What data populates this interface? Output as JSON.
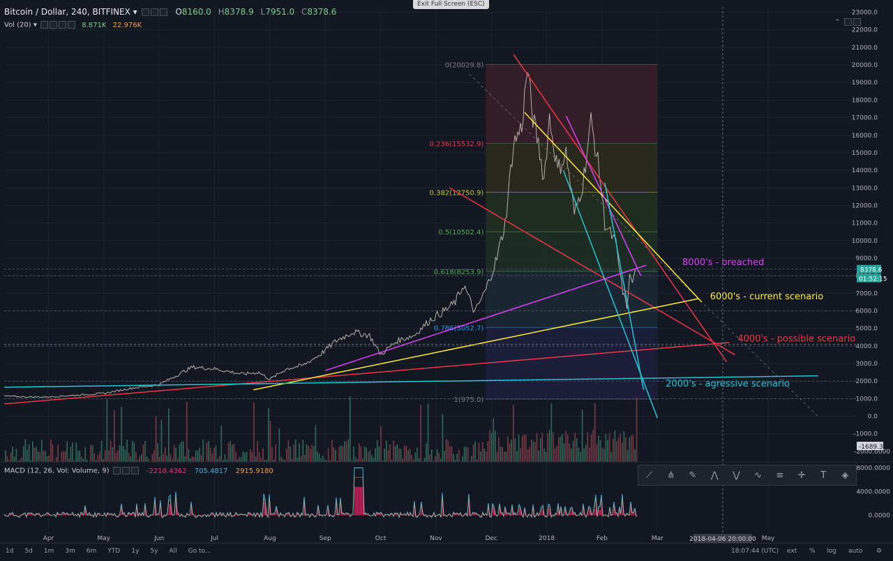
{
  "header": {
    "symbol": "Bitcoin / Dollar, 240, BITFINEX",
    "open_label": "O",
    "open": "8160.0",
    "high_label": "H",
    "high": "8378.9",
    "low_label": "L",
    "low": "7951.0",
    "close_label": "C",
    "close": "8378.6"
  },
  "volume_header": {
    "label": "Vol (20)",
    "v1": "8.871K",
    "v2": "22.976K"
  },
  "macd_header": {
    "label": "MACD (12, 26, Vol: Volume, 9)",
    "v1": "-2210.4362",
    "v2": "705.4817",
    "v3": "2915.9180"
  },
  "exit_fullscreen": "Exit Full Screen (ESC)",
  "price_tag": "8378.6",
  "countdown_tag": "01:52:15",
  "macd_bottom_tag": "-1689.3",
  "crosshair_date": "2018-04-06 20:00:00",
  "clock": "18:07:44 (UTC)",
  "timeframes": [
    "1d",
    "5d",
    "1m",
    "3m",
    "6m",
    "YTD",
    "1y",
    "5y",
    "All",
    "Go to..."
  ],
  "bottom_right": [
    "ext",
    "%",
    "log",
    "auto"
  ],
  "drawing_tools": [
    "trend-line-icon",
    "pitchfork-icon",
    "brush-icon",
    "xabcd-icon",
    "abcd-icon",
    "elliott-icon",
    "fib-icon",
    "crosshair-icon",
    "text-icon",
    "shapes-icon"
  ],
  "colors": {
    "bg": "#131722",
    "red": "#f23645",
    "yellow": "#ffeb3b",
    "magenta": "#e040fb",
    "cyan": "#26c6da"
  },
  "chart_data": {
    "type": "line",
    "title": "Bitcoin / Dollar, 240, BITFINEX",
    "price_axis": {
      "ticks": [
        -1000,
        0,
        1000,
        2000,
        3000,
        4000,
        5000,
        6000,
        7000,
        8000,
        9000,
        10000,
        11000,
        12000,
        13000,
        14000,
        15000,
        16000,
        17000,
        18000,
        19000,
        20000,
        21000,
        22000,
        23000
      ],
      "tick_labels": [
        "-1000.0",
        "0.0",
        "1000.0",
        "2000.0",
        "3000.0",
        "4000.0",
        "5000.0",
        "6000.0",
        "7000.0",
        "8000.0",
        "9000.0",
        "10000.0",
        "11000.0",
        "12000.0",
        "13000.0",
        "14000.0",
        "15000.0",
        "16000.0",
        "17000.0",
        "18000.0",
        "19000.0",
        "20000.0",
        "21000.0",
        "22000.0",
        "23000.0"
      ],
      "extra_labels": [
        "-2000.0000"
      ],
      "range": [
        -2600,
        23300
      ]
    },
    "macd_axis": {
      "ticks": [
        8000,
        4000,
        0
      ],
      "tick_labels": [
        "8000.0000",
        "4000.0000",
        "0.0000"
      ],
      "range": [
        -3000,
        9000
      ]
    },
    "time_axis": {
      "labels": [
        "Apr",
        "May",
        "Jun",
        "Jul",
        "Aug",
        "Sep",
        "Oct",
        "Nov",
        "Dec",
        "2018",
        "Feb",
        "Mar",
        "May"
      ],
      "months": [
        3,
        4,
        5,
        6,
        7,
        8,
        9,
        10,
        11,
        12,
        13,
        14,
        16
      ],
      "start_month": 2.2,
      "end_month": 17.6
    },
    "price_series": {
      "name": "BTC/USD",
      "x": [
        2.2,
        2.6,
        3.0,
        3.5,
        4.0,
        4.5,
        5.0,
        5.3,
        5.6,
        6.0,
        6.5,
        6.8,
        7.0,
        7.3,
        7.6,
        7.9,
        8.2,
        8.5,
        8.8,
        9.0,
        9.3,
        9.6,
        9.9,
        10.2,
        10.35,
        10.5,
        10.7,
        10.9,
        11.1,
        11.25,
        11.4,
        11.55,
        11.65,
        11.75,
        11.85,
        11.95,
        12.05,
        12.2,
        12.35,
        12.5,
        12.65,
        12.8,
        12.95,
        13.05,
        13.15,
        13.25,
        13.35,
        13.45
      ],
      "y": [
        1150,
        1100,
        1100,
        1200,
        1300,
        1600,
        1800,
        2300,
        2800,
        2700,
        2400,
        2500,
        2100,
        2700,
        2900,
        3500,
        4300,
        4800,
        4600,
        3500,
        4300,
        4600,
        5500,
        6100,
        6500,
        7500,
        5900,
        7200,
        9000,
        11000,
        15500,
        16500,
        19800,
        17000,
        15500,
        13500,
        17000,
        14000,
        15000,
        11500,
        13200,
        16800,
        14000,
        11000,
        10400,
        9800,
        7500,
        6100
      ]
    },
    "tail_series": {
      "x": [
        13.45,
        13.5,
        13.55,
        13.6
      ],
      "y": [
        6100,
        8100,
        7600,
        8378.6
      ]
    },
    "volume_series": {
      "max": 4500
    },
    "fibonacci": {
      "levels": [
        {
          "label": "0(20029.8)",
          "value": 20029.8,
          "color": "#787b86"
        },
        {
          "label": "0.236(15532.9)",
          "value": 15532.9,
          "color": "#f23645"
        },
        {
          "label": "0.382(12750.9)",
          "value": 12750.9,
          "color": "#c0ca33"
        },
        {
          "label": "0.5(10502.4)",
          "value": 10502.4,
          "color": "#4caf50"
        },
        {
          "label": "0.618(8253.9)",
          "value": 8253.9,
          "color": "#4caf50"
        },
        {
          "label": "0.786(5052.7)",
          "value": 5052.7,
          "color": "#2196f3"
        },
        {
          "label": "1(975.0)",
          "value": 975.0,
          "color": "#787b86"
        }
      ],
      "x_start": 10.9,
      "x_end": 14.0
    },
    "trendlines": [
      {
        "color": "#f23645",
        "x1": 2.2,
        "y1": 700,
        "x2": 15.3,
        "y2": 4200
      },
      {
        "color": "#f23645",
        "x1": 11.4,
        "y1": 20600,
        "x2": 15.25,
        "y2": 3100
      },
      {
        "color": "#f23645",
        "x1": 10.25,
        "y1": 13000,
        "x2": 15.4,
        "y2": 3500
      },
      {
        "color": "#ffeb3b",
        "x1": 6.7,
        "y1": 1500,
        "x2": 14.75,
        "y2": 6700
      },
      {
        "color": "#ffeb3b",
        "x1": 11.6,
        "y1": 17300,
        "x2": 14.8,
        "y2": 6500
      },
      {
        "color": "#e040fb",
        "x1": 8.0,
        "y1": 2600,
        "x2": 13.8,
        "y2": 8600
      },
      {
        "color": "#e040fb",
        "x1": 12.35,
        "y1": 17100,
        "x2": 13.7,
        "y2": 8000
      },
      {
        "color": "#26c6da",
        "x1": 2.2,
        "y1": 1650,
        "x2": 16.9,
        "y2": 2300
      },
      {
        "color": "#26c6da",
        "x1": 12.3,
        "y1": 14000,
        "x2": 14.0,
        "y2": -100
      },
      {
        "color": "#26c6da",
        "x1": 13.05,
        "y1": 13300,
        "x2": 13.75,
        "y2": 1500
      }
    ],
    "annotations": [
      {
        "text": "8000's - breached",
        "color": "#e040fb",
        "x": 14.45,
        "y": 8600
      },
      {
        "text": "6000's - current scenario",
        "color": "#ffeb3b",
        "x": 14.95,
        "y": 6650
      },
      {
        "text": "4000's - possible scenario",
        "color": "#f23645",
        "x": 15.45,
        "y": 4250
      },
      {
        "text": "2000's - agressive scenario",
        "color": "#26c6da",
        "x": 14.15,
        "y": 1700
      }
    ],
    "crosshair": {
      "x": 15.18,
      "y": 4100
    },
    "horizontal_markers": [
      8378.6,
      8000,
      6000,
      4000,
      2000,
      1000
    ]
  }
}
